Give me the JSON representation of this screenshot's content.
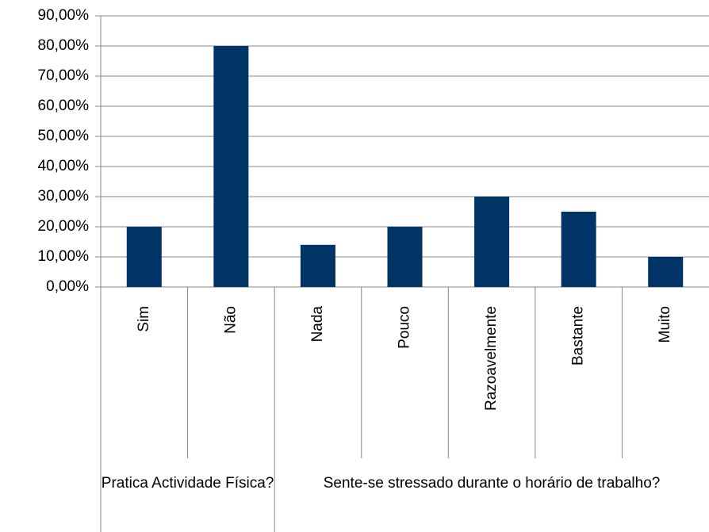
{
  "chart_data": {
    "type": "bar",
    "groups": [
      {
        "name": "Pratica Actividade Física?",
        "categories": [
          "Sim",
          "Não"
        ]
      },
      {
        "name": "Sente-se stressado durante o horário de trabalho?",
        "categories": [
          "Nada",
          "Pouco",
          "Razoavelmente",
          "Bastante",
          "Muito"
        ]
      }
    ],
    "values": [
      20,
      80,
      14,
      20,
      30,
      25,
      10
    ],
    "color": "#003366",
    "ylim": [
      0,
      90
    ],
    "yticks": [
      {
        "value": 0,
        "label": "0,00%"
      },
      {
        "value": 10,
        "label": "10,00%"
      },
      {
        "value": 20,
        "label": "20,00%"
      },
      {
        "value": 30,
        "label": "30,00%"
      },
      {
        "value": 40,
        "label": "40,00%"
      },
      {
        "value": 50,
        "label": "50,00%"
      },
      {
        "value": 60,
        "label": "60,00%"
      },
      {
        "value": 70,
        "label": "70,00%"
      },
      {
        "value": 80,
        "label": "80,00%"
      },
      {
        "value": 90,
        "label": "90,00%"
      }
    ],
    "grid": true
  }
}
